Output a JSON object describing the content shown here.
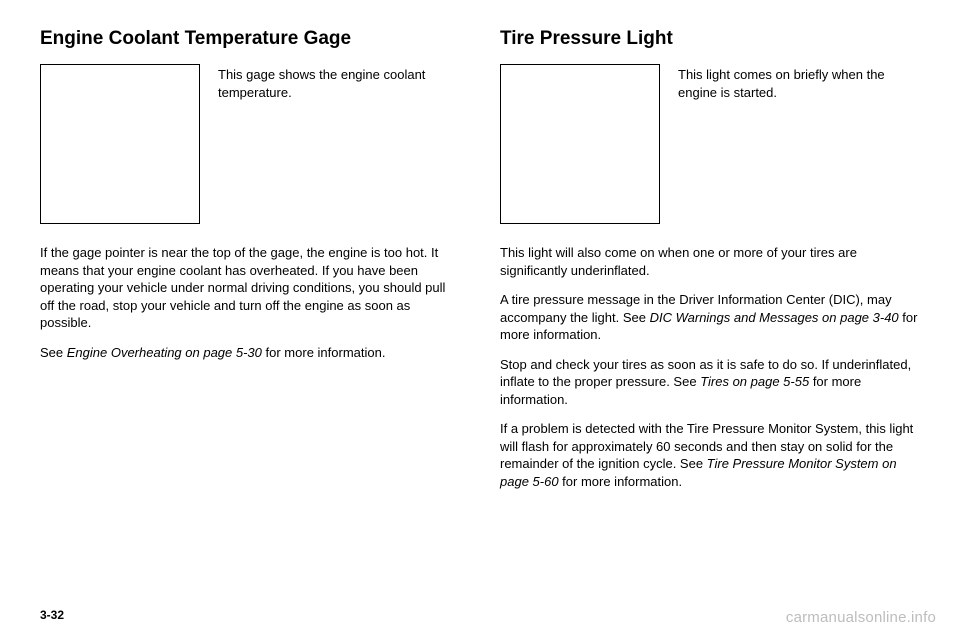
{
  "left": {
    "heading": "Engine Coolant Temperature Gage",
    "caption": "This gage shows the engine coolant temperature.",
    "p1a": "If the gage pointer is near the top of the gage, the engine is too hot. It means that your engine coolant has overheated. If you have been operating your vehicle under normal driving conditions, you should pull off the road, stop your vehicle and turn off the engine as soon as possible.",
    "p2a": "See ",
    "p2i": "Engine Overheating on page 5-30",
    "p2b": " for more information."
  },
  "right": {
    "heading": "Tire Pressure Light",
    "caption": "This light comes on briefly when the engine is started.",
    "p1": "This light will also come on when one or more of your tires are significantly underinflated.",
    "p2a": "A tire pressure message in the Driver Information Center (DIC), may accompany the light. See ",
    "p2i": "DIC Warnings and Messages on page 3-40",
    "p2b": " for more information.",
    "p3a": "Stop and check your tires as soon as it is safe to do so. If underinflated, inflate to the proper pressure. See ",
    "p3i": "Tires on page 5-55",
    "p3b": " for more information.",
    "p4a": "If a problem is detected with the Tire Pressure Monitor System, this light will flash for approximately 60 seconds and then stay on solid for the remainder of the ignition cycle. See ",
    "p4i": "Tire Pressure Monitor System on page 5-60",
    "p4b": " for more information."
  },
  "pagenum": "3-32",
  "watermark": "carmanualsonline.info"
}
